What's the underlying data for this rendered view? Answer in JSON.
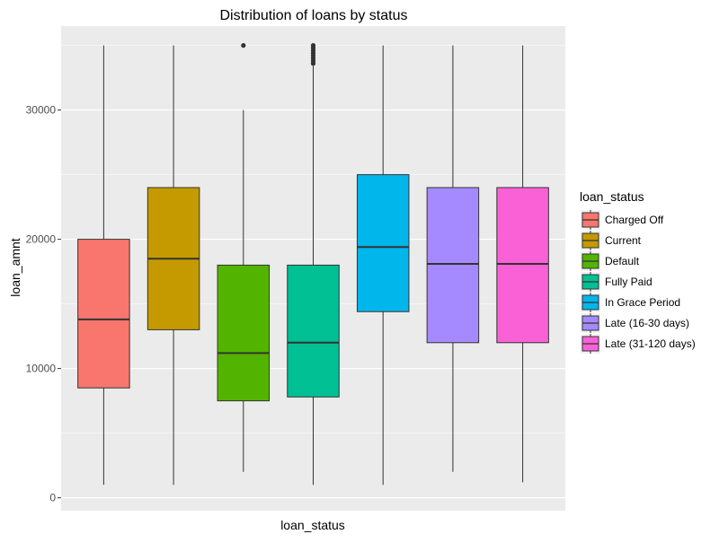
{
  "chart_data": {
    "type": "boxplot",
    "title": "Distribution of loans by status",
    "xlabel": "loan_status",
    "ylabel": "loan_amnt",
    "ylim": [
      -1000,
      36500
    ],
    "yticks": [
      0,
      10000,
      20000,
      30000
    ],
    "ytick_labels": [
      "0",
      "10000",
      "20000",
      "30000"
    ],
    "grid": true,
    "legend": {
      "title": "loan_status",
      "placement": "right"
    },
    "series": [
      {
        "name": "Charged Off",
        "color": "#F8766D",
        "whisker_low": 1000,
        "q1": 8500,
        "median": 13800,
        "q3": 20000,
        "whisker_high": 35000,
        "outliers": []
      },
      {
        "name": "Current",
        "color": "#C49A00",
        "whisker_low": 1000,
        "q1": 13000,
        "median": 18500,
        "q3": 24000,
        "whisker_high": 35000,
        "outliers": []
      },
      {
        "name": "Default",
        "color": "#53B400",
        "whisker_low": 2000,
        "q1": 7500,
        "median": 11200,
        "q3": 18000,
        "whisker_high": 30000,
        "outliers": [
          35000
        ]
      },
      {
        "name": "Fully Paid",
        "color": "#00C094",
        "whisker_low": 1000,
        "q1": 7800,
        "median": 12000,
        "q3": 18000,
        "whisker_high": 33400,
        "outliers": [
          33600,
          33800,
          34000,
          34200,
          34400,
          34600,
          34800,
          35000
        ]
      },
      {
        "name": "In Grace Period",
        "color": "#00B6EB",
        "whisker_low": 1000,
        "q1": 14400,
        "median": 19400,
        "q3": 25000,
        "whisker_high": 35000,
        "outliers": []
      },
      {
        "name": "Late (16-30 days)",
        "color": "#A58AFF",
        "whisker_low": 2000,
        "q1": 12000,
        "median": 18100,
        "q3": 24000,
        "whisker_high": 35000,
        "outliers": []
      },
      {
        "name": "Late (31-120 days)",
        "color": "#FB61D7",
        "whisker_low": 1200,
        "q1": 12000,
        "median": 18100,
        "q3": 24000,
        "whisker_high": 35000,
        "outliers": []
      }
    ]
  }
}
